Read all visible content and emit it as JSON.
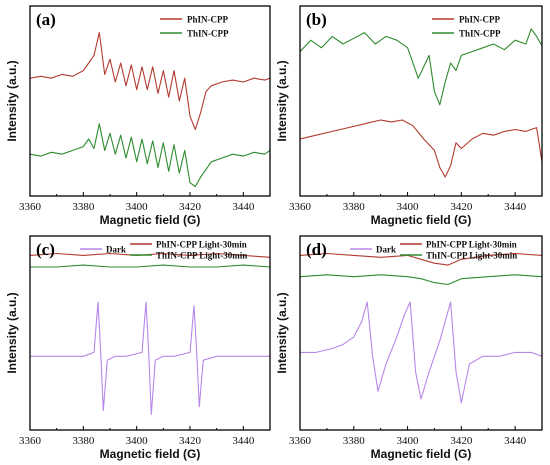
{
  "colors": {
    "red": "#b23a2e",
    "green": "#2e8b2e",
    "violet": "#b886e8",
    "axis": "#000000"
  },
  "chart_data": [
    {
      "panel": "(a)",
      "type": "line",
      "xlabel": "Magnetic field (G)",
      "ylabel": "Intensity (a.u.)",
      "xlim": [
        3360,
        3450
      ],
      "xticks": [
        3360,
        3380,
        3400,
        3420,
        3440
      ],
      "legend_placement": "top-right",
      "series": [
        {
          "name": "PhIN-CPP",
          "color": "#b23a2e",
          "x": [
            3360,
            3364,
            3368,
            3372,
            3376,
            3380,
            3382,
            3384,
            3386,
            3388,
            3390,
            3392,
            3394,
            3396,
            3398,
            3400,
            3402,
            3404,
            3406,
            3408,
            3410,
            3412,
            3414,
            3416,
            3418,
            3420,
            3422,
            3424,
            3426,
            3428,
            3432,
            3436,
            3440,
            3444,
            3448,
            3450
          ],
          "y": [
            0.62,
            0.63,
            0.62,
            0.64,
            0.63,
            0.66,
            0.7,
            0.74,
            0.86,
            0.64,
            0.72,
            0.6,
            0.7,
            0.58,
            0.69,
            0.56,
            0.68,
            0.56,
            0.68,
            0.54,
            0.66,
            0.52,
            0.66,
            0.5,
            0.62,
            0.42,
            0.35,
            0.44,
            0.55,
            0.58,
            0.6,
            0.61,
            0.6,
            0.62,
            0.61,
            0.62
          ]
        },
        {
          "name": "ThIN-CPP",
          "color": "#2e8b2e",
          "x": [
            3360,
            3364,
            3368,
            3372,
            3376,
            3380,
            3382,
            3384,
            3386,
            3388,
            3390,
            3392,
            3394,
            3396,
            3398,
            3400,
            3402,
            3404,
            3406,
            3408,
            3410,
            3412,
            3414,
            3416,
            3418,
            3420,
            3422,
            3424,
            3426,
            3428,
            3432,
            3436,
            3440,
            3444,
            3448,
            3450
          ],
          "y": [
            0.22,
            0.21,
            0.23,
            0.22,
            0.24,
            0.26,
            0.3,
            0.25,
            0.38,
            0.24,
            0.33,
            0.22,
            0.32,
            0.2,
            0.31,
            0.18,
            0.3,
            0.17,
            0.29,
            0.15,
            0.28,
            0.13,
            0.27,
            0.12,
            0.24,
            0.07,
            0.05,
            0.1,
            0.14,
            0.18,
            0.2,
            0.22,
            0.21,
            0.23,
            0.22,
            0.24
          ]
        }
      ]
    },
    {
      "panel": "(b)",
      "type": "line",
      "xlabel": "Magnetic field (G)",
      "ylabel": "Intensity (a.u.)",
      "xlim": [
        3360,
        3450
      ],
      "xticks": [
        3360,
        3380,
        3400,
        3420,
        3440
      ],
      "legend_placement": "top-right",
      "series": [
        {
          "name": "PhIN-CPP",
          "color": "#b23a2e",
          "x": [
            3360,
            3366,
            3372,
            3378,
            3384,
            3390,
            3394,
            3398,
            3402,
            3406,
            3410,
            3412,
            3414,
            3416,
            3418,
            3420,
            3424,
            3428,
            3432,
            3436,
            3440,
            3444,
            3448,
            3450
          ],
          "y": [
            0.3,
            0.32,
            0.34,
            0.36,
            0.38,
            0.4,
            0.39,
            0.4,
            0.37,
            0.3,
            0.24,
            0.15,
            0.1,
            0.16,
            0.28,
            0.25,
            0.3,
            0.33,
            0.32,
            0.34,
            0.35,
            0.34,
            0.36,
            0.18
          ]
        },
        {
          "name": "ThIN-CPP",
          "color": "#2e8b2e",
          "x": [
            3360,
            3364,
            3368,
            3372,
            3376,
            3380,
            3384,
            3388,
            3392,
            3396,
            3400,
            3404,
            3408,
            3410,
            3412,
            3414,
            3416,
            3418,
            3420,
            3424,
            3428,
            3432,
            3436,
            3440,
            3444,
            3446,
            3448,
            3450
          ],
          "y": [
            0.76,
            0.82,
            0.78,
            0.84,
            0.8,
            0.83,
            0.86,
            0.8,
            0.84,
            0.82,
            0.78,
            0.62,
            0.74,
            0.55,
            0.48,
            0.6,
            0.7,
            0.66,
            0.74,
            0.76,
            0.78,
            0.8,
            0.77,
            0.82,
            0.8,
            0.88,
            0.84,
            0.79
          ]
        }
      ]
    },
    {
      "panel": "(c)",
      "type": "line",
      "xlabel": "Magnetic field (G)",
      "ylabel": "Intensity (a.u.)",
      "xlim": [
        3360,
        3450
      ],
      "xticks": [
        3360,
        3380,
        3400,
        3420,
        3440
      ],
      "legend_placement": "top",
      "series": [
        {
          "name": "Dark",
          "color": "#b886e8",
          "x": [
            3360,
            3370,
            3380,
            3384,
            3385.5,
            3386.5,
            3387.5,
            3389,
            3392,
            3396,
            3402,
            3403.5,
            3404.5,
            3405.5,
            3407,
            3410,
            3414,
            3420,
            3421.5,
            3422.5,
            3423.5,
            3425,
            3430,
            3440,
            3450
          ],
          "y": [
            0.38,
            0.38,
            0.38,
            0.4,
            0.66,
            0.4,
            0.1,
            0.36,
            0.38,
            0.38,
            0.4,
            0.66,
            0.4,
            0.08,
            0.36,
            0.38,
            0.38,
            0.4,
            0.64,
            0.4,
            0.12,
            0.36,
            0.38,
            0.38,
            0.38
          ]
        },
        {
          "name": "PhIN-CPP Light-30min",
          "color": "#b23a2e",
          "x": [
            3360,
            3370,
            3380,
            3390,
            3400,
            3410,
            3420,
            3430,
            3440,
            3450
          ],
          "y": [
            0.9,
            0.91,
            0.9,
            0.91,
            0.9,
            0.91,
            0.9,
            0.91,
            0.9,
            0.89
          ]
        },
        {
          "name": "ThIN-CPP Light-30min",
          "color": "#2e8b2e",
          "x": [
            3360,
            3370,
            3380,
            3390,
            3400,
            3410,
            3420,
            3430,
            3440,
            3450
          ],
          "y": [
            0.84,
            0.84,
            0.85,
            0.84,
            0.84,
            0.85,
            0.84,
            0.84,
            0.85,
            0.84
          ]
        }
      ]
    },
    {
      "panel": "(d)",
      "type": "line",
      "xlabel": "Magnetic field (G)",
      "ylabel": "Intensity (a.u.)",
      "xlim": [
        3360,
        3450
      ],
      "xticks": [
        3360,
        3380,
        3400,
        3420,
        3440
      ],
      "legend_placement": "top",
      "series": [
        {
          "name": "Dark",
          "color": "#b886e8",
          "x": [
            3360,
            3366,
            3372,
            3376,
            3380,
            3383,
            3385,
            3387,
            3389,
            3392,
            3396,
            3399,
            3401,
            3403,
            3405,
            3408,
            3412,
            3414,
            3416,
            3418,
            3420,
            3423,
            3428,
            3434,
            3440,
            3446,
            3450
          ],
          "y": [
            0.4,
            0.4,
            0.42,
            0.44,
            0.48,
            0.56,
            0.66,
            0.38,
            0.2,
            0.34,
            0.48,
            0.6,
            0.66,
            0.3,
            0.16,
            0.3,
            0.46,
            0.56,
            0.66,
            0.3,
            0.14,
            0.34,
            0.38,
            0.38,
            0.4,
            0.4,
            0.38
          ]
        },
        {
          "name": "PhIN-CPP Light-30min",
          "color": "#b23a2e",
          "x": [
            3360,
            3370,
            3380,
            3390,
            3400,
            3405,
            3410,
            3415,
            3420,
            3430,
            3440,
            3450
          ],
          "y": [
            0.9,
            0.91,
            0.9,
            0.89,
            0.9,
            0.88,
            0.86,
            0.85,
            0.88,
            0.9,
            0.91,
            0.9
          ]
        },
        {
          "name": "ThIN-CPP Light-30min",
          "color": "#2e8b2e",
          "x": [
            3360,
            3370,
            3380,
            3390,
            3400,
            3405,
            3410,
            3415,
            3420,
            3430,
            3440,
            3450
          ],
          "y": [
            0.79,
            0.8,
            0.79,
            0.8,
            0.79,
            0.78,
            0.76,
            0.75,
            0.78,
            0.79,
            0.8,
            0.79
          ]
        }
      ]
    }
  ]
}
